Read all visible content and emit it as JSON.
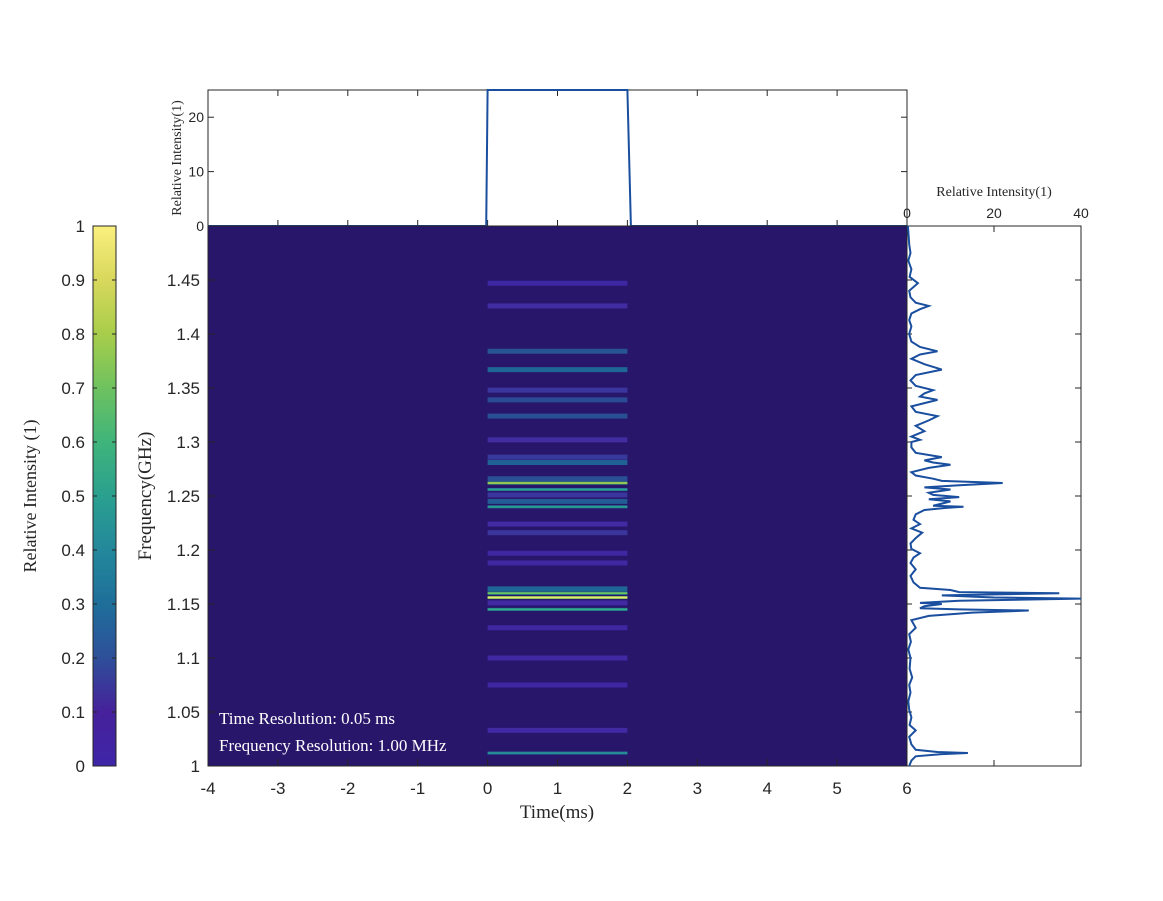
{
  "chart_data": [
    {
      "type": "heatmap",
      "xlabel": "Time(ms)",
      "ylabel": "Frequency(GHz)",
      "xlim": [
        -4,
        6
      ],
      "ylim": [
        1.0,
        1.5
      ],
      "x_ticks": [
        "-4",
        "-3",
        "-2",
        "-1",
        "0",
        "1",
        "2",
        "3",
        "4",
        "5",
        "6"
      ],
      "y_ticks": [
        "1",
        "1.05",
        "1.1",
        "1.15",
        "1.2",
        "1.25",
        "1.3",
        "1.35",
        "1.4",
        "1.45"
      ],
      "background_color": "#27166a",
      "pulse_time_range": [
        0,
        2
      ],
      "annotations": [
        "Time Resolution: 0.05 ms",
        "Frequency Resolution: 1.00 MHz"
      ],
      "bands": [
        {
          "freq": 1.012,
          "intensity": 0.45
        },
        {
          "freq": 1.033,
          "intensity": 0.1
        },
        {
          "freq": 1.075,
          "intensity": 0.05
        },
        {
          "freq": 1.1,
          "intensity": 0.08
        },
        {
          "freq": 1.128,
          "intensity": 0.06
        },
        {
          "freq": 1.145,
          "intensity": 0.55
        },
        {
          "freq": 1.151,
          "intensity": 0.12
        },
        {
          "freq": 1.156,
          "intensity": 0.95
        },
        {
          "freq": 1.16,
          "intensity": 0.7
        },
        {
          "freq": 1.164,
          "intensity": 0.4
        },
        {
          "freq": 1.188,
          "intensity": 0.08
        },
        {
          "freq": 1.197,
          "intensity": 0.06
        },
        {
          "freq": 1.216,
          "intensity": 0.18
        },
        {
          "freq": 1.224,
          "intensity": 0.12
        },
        {
          "freq": 1.24,
          "intensity": 0.5
        },
        {
          "freq": 1.245,
          "intensity": 0.35
        },
        {
          "freq": 1.251,
          "intensity": 0.18
        },
        {
          "freq": 1.256,
          "intensity": 0.5
        },
        {
          "freq": 1.262,
          "intensity": 0.8
        },
        {
          "freq": 1.266,
          "intensity": 0.3
        },
        {
          "freq": 1.281,
          "intensity": 0.38
        },
        {
          "freq": 1.286,
          "intensity": 0.2
        },
        {
          "freq": 1.302,
          "intensity": 0.14
        },
        {
          "freq": 1.324,
          "intensity": 0.3
        },
        {
          "freq": 1.339,
          "intensity": 0.28
        },
        {
          "freq": 1.348,
          "intensity": 0.18
        },
        {
          "freq": 1.367,
          "intensity": 0.4
        },
        {
          "freq": 1.384,
          "intensity": 0.32
        },
        {
          "freq": 1.426,
          "intensity": 0.14
        },
        {
          "freq": 1.447,
          "intensity": 0.05
        }
      ]
    },
    {
      "type": "line",
      "name": "time-profile",
      "ylabel": "Relative Intensity(1)",
      "xlim": [
        -4,
        6
      ],
      "ylim": [
        0,
        25
      ],
      "y_ticks": [
        "0",
        "10",
        "20"
      ],
      "x": [
        -4,
        -0.02,
        0,
        2,
        2.05,
        6
      ],
      "y": [
        0,
        0,
        25,
        25,
        0,
        0
      ]
    },
    {
      "type": "line",
      "name": "frequency-profile",
      "xlabel": "Relative Intensity(1)",
      "xlim": [
        0,
        40
      ],
      "ylim": [
        1.0,
        1.5
      ],
      "x_ticks": [
        "0",
        "20",
        "40"
      ],
      "freq": [
        1.0,
        1.005,
        1.009,
        1.011,
        1.012,
        1.013,
        1.015,
        1.02,
        1.027,
        1.033,
        1.038,
        1.045,
        1.052,
        1.06,
        1.068,
        1.075,
        1.082,
        1.09,
        1.1,
        1.108,
        1.115,
        1.122,
        1.128,
        1.135,
        1.139,
        1.142,
        1.144,
        1.145,
        1.146,
        1.148,
        1.15,
        1.151,
        1.153,
        1.155,
        1.156,
        1.158,
        1.16,
        1.161,
        1.163,
        1.165,
        1.17,
        1.176,
        1.182,
        1.188,
        1.193,
        1.197,
        1.201,
        1.206,
        1.211,
        1.216,
        1.22,
        1.224,
        1.228,
        1.233,
        1.237,
        1.239,
        1.24,
        1.241,
        1.243,
        1.245,
        1.247,
        1.249,
        1.251,
        1.253,
        1.256,
        1.258,
        1.26,
        1.262,
        1.264,
        1.266,
        1.269,
        1.272,
        1.276,
        1.279,
        1.281,
        1.283,
        1.286,
        1.29,
        1.295,
        1.3,
        1.302,
        1.305,
        1.31,
        1.315,
        1.32,
        1.324,
        1.328,
        1.333,
        1.336,
        1.339,
        1.342,
        1.345,
        1.348,
        1.352,
        1.357,
        1.362,
        1.367,
        1.372,
        1.377,
        1.381,
        1.384,
        1.388,
        1.393,
        1.4,
        1.407,
        1.413,
        1.419,
        1.423,
        1.426,
        1.429,
        1.434,
        1.44,
        1.447,
        1.453,
        1.46,
        1.468,
        1.475,
        1.483,
        1.49,
        1.5
      ],
      "intensity": [
        0.5,
        1.0,
        2.0,
        8.0,
        14.0,
        7.0,
        2.0,
        1.0,
        0.5,
        2.0,
        0.6,
        1.0,
        0.5,
        0.3,
        0.8,
        0.5,
        1.2,
        0.6,
        0.8,
        0.3,
        0.9,
        0.5,
        2.0,
        1.0,
        5.0,
        15.0,
        28.0,
        12.0,
        3.0,
        4.0,
        8.0,
        3.0,
        12.0,
        40.0,
        20.0,
        8.0,
        35.0,
        12.0,
        10.0,
        3.0,
        1.5,
        0.8,
        2.0,
        0.8,
        1.5,
        3.0,
        1.0,
        0.8,
        2.0,
        3.5,
        1.0,
        3.0,
        1.5,
        2.0,
        4.0,
        9.0,
        13.0,
        6.0,
        8.0,
        10.0,
        5.0,
        12.0,
        6.0,
        5.0,
        10.0,
        4.0,
        12.0,
        22.0,
        8.0,
        6.0,
        2.0,
        1.0,
        5.0,
        10.0,
        6.0,
        4.0,
        8.0,
        2.0,
        1.0,
        1.0,
        3.0,
        1.0,
        4.0,
        2.0,
        5.0,
        7.0,
        2.0,
        1.0,
        4.0,
        7.0,
        3.0,
        4.0,
        6.0,
        2.0,
        0.8,
        2.0,
        8.0,
        4.0,
        1.0,
        3.0,
        7.0,
        3.0,
        1.0,
        0.5,
        1.0,
        0.5,
        1.0,
        3.0,
        5.0,
        2.0,
        0.8,
        0.5,
        2.5,
        0.6,
        1.0,
        0.3,
        0.8,
        0.5,
        0.4,
        0.2
      ]
    },
    {
      "type": "heatmap",
      "name": "colorbar",
      "ylabel": "Relative Intensity (1)",
      "ylim": [
        0,
        1
      ],
      "ticks": [
        "0",
        "0.1",
        "0.2",
        "0.3",
        "0.4",
        "0.5",
        "0.6",
        "0.7",
        "0.8",
        "0.9",
        "1"
      ],
      "colormap": [
        "#3e26a8",
        "#4743f4",
        "#2f79f2",
        "#2498d2",
        "#1cacbe",
        "#13ba9b",
        "#53c167",
        "#a6be35",
        "#f3bd39",
        "#f9e722"
      ]
    }
  ]
}
